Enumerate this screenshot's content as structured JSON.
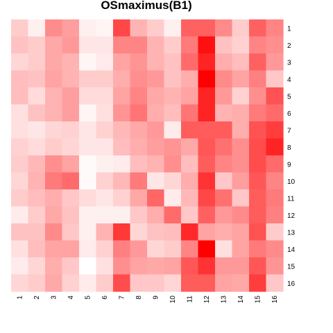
{
  "chart_data": {
    "type": "heatmap",
    "title": "OSmaximus(B1)",
    "x_labels": [
      "1",
      "2",
      "3",
      "4",
      "5",
      "6",
      "7",
      "8",
      "9",
      "10",
      "11",
      "12",
      "13",
      "14",
      "15",
      "16"
    ],
    "y_labels": [
      "1",
      "2",
      "3",
      "4",
      "5",
      "6",
      "7",
      "8",
      "9",
      "10",
      "11",
      "12",
      "13",
      "14",
      "15",
      "16"
    ],
    "color_low": "#ffffff",
    "color_high": "#ff0000",
    "value_range": [
      0,
      1
    ],
    "values": [
      [
        0.2,
        0.06,
        0.45,
        0.38,
        0.06,
        0.04,
        0.72,
        0.3,
        0.2,
        0.06,
        0.62,
        0.62,
        0.46,
        0.2,
        0.62,
        0.48
      ],
      [
        0.24,
        0.2,
        0.34,
        0.4,
        0.1,
        0.1,
        0.48,
        0.48,
        0.3,
        0.2,
        0.52,
        0.94,
        0.24,
        0.18,
        0.48,
        0.44
      ],
      [
        0.16,
        0.2,
        0.34,
        0.3,
        0.04,
        0.08,
        0.36,
        0.42,
        0.3,
        0.24,
        0.58,
        0.86,
        0.32,
        0.26,
        0.62,
        0.4
      ],
      [
        0.26,
        0.24,
        0.36,
        0.3,
        0.2,
        0.2,
        0.32,
        0.44,
        0.4,
        0.24,
        0.32,
        1.0,
        0.46,
        0.36,
        0.5,
        0.22
      ],
      [
        0.26,
        0.14,
        0.3,
        0.38,
        0.14,
        0.14,
        0.36,
        0.48,
        0.34,
        0.3,
        0.36,
        0.86,
        0.4,
        0.18,
        0.44,
        0.68
      ],
      [
        0.12,
        0.24,
        0.3,
        0.38,
        0.04,
        0.12,
        0.42,
        0.54,
        0.32,
        0.26,
        0.54,
        0.86,
        0.3,
        0.32,
        0.52,
        0.58
      ],
      [
        0.12,
        0.1,
        0.16,
        0.18,
        0.1,
        0.18,
        0.28,
        0.34,
        0.4,
        0.08,
        0.64,
        0.64,
        0.64,
        0.32,
        0.68,
        0.76
      ],
      [
        0.18,
        0.14,
        0.2,
        0.16,
        0.1,
        0.1,
        0.26,
        0.32,
        0.38,
        0.42,
        0.34,
        0.66,
        0.56,
        0.44,
        0.7,
        0.86
      ],
      [
        0.2,
        0.28,
        0.44,
        0.36,
        0.02,
        0.06,
        0.08,
        0.26,
        0.3,
        0.44,
        0.26,
        0.64,
        0.48,
        0.44,
        0.7,
        0.58
      ],
      [
        0.16,
        0.3,
        0.52,
        0.58,
        0.02,
        0.18,
        0.28,
        0.52,
        0.1,
        0.16,
        0.32,
        0.8,
        0.22,
        0.38,
        0.66,
        0.48
      ],
      [
        0.2,
        0.26,
        0.32,
        0.22,
        0.14,
        0.1,
        0.18,
        0.34,
        0.6,
        0.08,
        0.28,
        0.72,
        0.56,
        0.22,
        0.64,
        0.52
      ],
      [
        0.08,
        0.2,
        0.34,
        0.24,
        0.06,
        0.06,
        0.06,
        0.22,
        0.32,
        0.58,
        0.22,
        0.62,
        0.4,
        0.46,
        0.64,
        0.5
      ],
      [
        0.24,
        0.24,
        0.46,
        0.22,
        0.06,
        0.3,
        0.78,
        0.16,
        0.24,
        0.26,
        0.84,
        0.36,
        0.32,
        0.36,
        0.68,
        0.2
      ],
      [
        0.12,
        0.26,
        0.36,
        0.36,
        0.08,
        0.18,
        0.5,
        0.4,
        0.16,
        0.2,
        0.48,
        1.0,
        0.12,
        0.36,
        0.52,
        0.46
      ],
      [
        0.08,
        0.16,
        0.32,
        0.22,
        0.0,
        0.12,
        0.44,
        0.36,
        0.34,
        0.36,
        0.66,
        0.8,
        0.4,
        0.4,
        0.66,
        0.42
      ],
      [
        0.16,
        0.2,
        0.34,
        0.18,
        0.08,
        0.2,
        0.7,
        0.22,
        0.22,
        0.16,
        0.64,
        0.64,
        0.36,
        0.34,
        0.76,
        0.22
      ]
    ]
  }
}
